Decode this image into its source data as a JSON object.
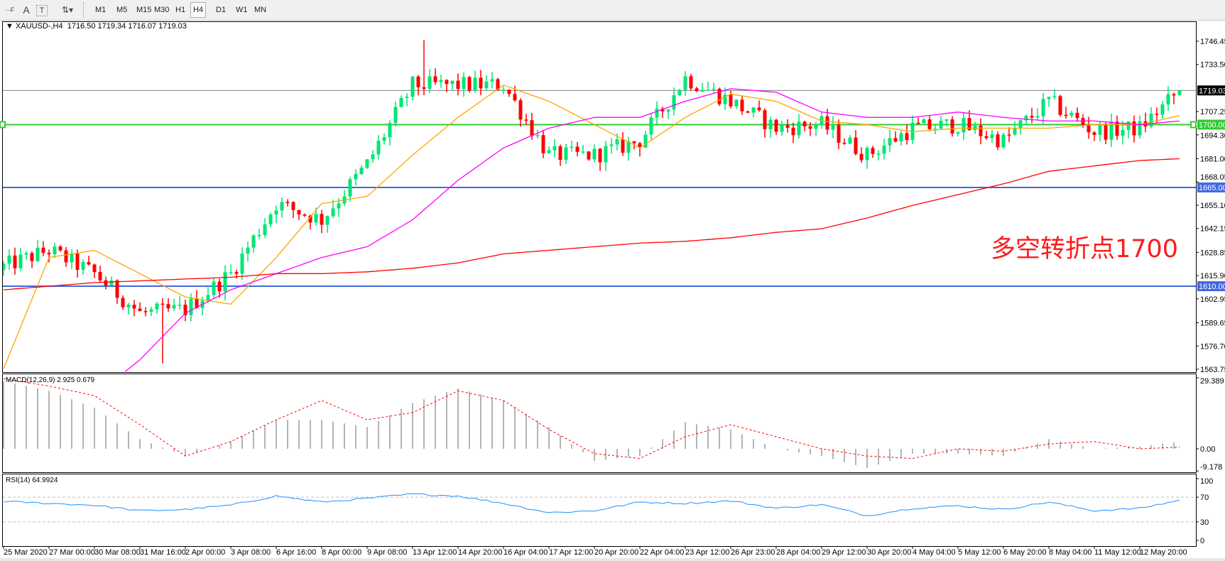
{
  "toolbar": {
    "icons": [
      "period-separators-icon",
      "text-label-icon",
      "text-icon",
      "arrows-icon"
    ],
    "timeframes": [
      "M1",
      "M5",
      "M15",
      "M30",
      "H1",
      "H4",
      "D1",
      "W1",
      "MN"
    ],
    "active_timeframe": "H4"
  },
  "header": {
    "symbol": "XAUUSD-,H4",
    "ohlc": "1716.50 1719.34 1716.07 1719.03"
  },
  "annotation": "多空转折点1700",
  "colors": {
    "bull": "#00e676",
    "bear": "#ff0000",
    "ma_fast": "#ffa500",
    "ma_mid": "#ff00ff",
    "ma_slow": "#ff0000",
    "support": "#4169e1",
    "pivot": "#32cd32",
    "last_price": "#808080",
    "rsi": "#1e90ff",
    "macd_hist": "#b4b4b4",
    "macd_signal": "#ff0000"
  },
  "chart_data": [
    {
      "type": "candlestick",
      "title": "XAUUSD-,H4",
      "ylim": [
        1563.75,
        1746.45
      ],
      "y_ticks": [
        "1746.45",
        "1733.50",
        "1707.25",
        "1694.30",
        "1681.00",
        "1668.05",
        "1655.10",
        "1642.15",
        "1628.85",
        "1615.90",
        "1602.95",
        "1589.65",
        "1576.70",
        "1563.75"
      ],
      "x_labels": [
        "25 Mar 2020",
        "27 Mar 00:00",
        "30 Mar 08:00",
        "31 Mar 16:00",
        "2 Apr 00:00",
        "3 Apr 08:00",
        "6 Apr 16:00",
        "8 Apr 00:00",
        "9 Apr 08:00",
        "13 Apr 12:00",
        "14 Apr 20:00",
        "16 Apr 04:00",
        "17 Apr 12:00",
        "20 Apr 20:00",
        "22 Apr 04:00",
        "23 Apr 12:00",
        "26 Apr 23:00",
        "28 Apr 04:00",
        "29 Apr 12:00",
        "30 Apr 20:00",
        "4 May 04:00",
        "5 May 12:00",
        "6 May 20:00",
        "8 May 04:00",
        "11 May 12:00",
        "12 May 20:00"
      ],
      "bars_per_label": 8,
      "bar_count": 208,
      "close_at_labels": [
        1621,
        1630,
        1617,
        1595,
        1597,
        1617,
        1656,
        1647,
        1678,
        1722,
        1722,
        1722,
        1683,
        1683,
        1691,
        1726,
        1713,
        1698,
        1700,
        1683,
        1698,
        1700,
        1691,
        1713,
        1696,
        1698
      ],
      "last_bar": {
        "open": 1716.5,
        "high": 1719.34,
        "low": 1716.07,
        "close": 1719.03
      },
      "period_high": 1747,
      "period_low": 1567,
      "horizontal_lines": [
        {
          "value": 1719.03,
          "label": "1719.03",
          "kind": "last_price"
        },
        {
          "value": 1700.0,
          "label": "1700.00",
          "kind": "pivot"
        },
        {
          "value": 1665.0,
          "label": "1665.00",
          "kind": "support"
        },
        {
          "value": 1610.0,
          "label": "1610.00",
          "kind": "support"
        }
      ],
      "moving_averages": [
        {
          "color": "ma_fast",
          "values_at_labels": [
            1564,
            1626,
            1630,
            1617,
            1604,
            1600,
            1626,
            1656,
            1660,
            1683,
            1704,
            1722,
            1713,
            1700,
            1687,
            1704,
            1717,
            1713,
            1702,
            1700,
            1696,
            1698,
            1698,
            1698,
            1700,
            1700
          ],
          "last": 1705
        },
        {
          "color": "ma_mid",
          "values_at_labels": [
            null,
            null,
            null,
            1569,
            1595,
            1608,
            1617,
            1626,
            1632,
            1647,
            1669,
            1687,
            1698,
            1704,
            1704,
            1713,
            1720,
            1718,
            1707,
            1704,
            1704,
            1707,
            1704,
            1702,
            1702,
            1700
          ],
          "last": 1702
        },
        {
          "color": "ma_slow",
          "values_at_labels": [
            1608,
            1610,
            1612,
            1613,
            1614,
            1615,
            1617,
            1617,
            1618,
            1620,
            1623,
            1628,
            1630,
            1632,
            1634,
            1635,
            1637,
            1640,
            1642,
            1648,
            1655,
            1661,
            1667,
            1674,
            1677,
            1680
          ],
          "last": 1681
        }
      ]
    },
    {
      "type": "bar+line",
      "title": "MACD(12,26,9) 2.925 0.679",
      "ylim": [
        -9.178,
        29.389
      ],
      "y_ticks": [
        "29.389",
        "0.00",
        "-9.178"
      ],
      "main_at_labels": [
        28,
        24,
        17,
        4,
        -3,
        3,
        12,
        12,
        9,
        19,
        25,
        20,
        9,
        -5,
        -3,
        11,
        8,
        0,
        -3,
        -8,
        -2,
        -2,
        -3,
        4,
        0,
        1
      ],
      "signal_at_labels": [
        29,
        26,
        22,
        10,
        -3,
        3,
        12,
        20,
        12,
        15,
        24,
        20,
        8,
        -2,
        -4,
        5,
        10,
        5,
        0,
        -3,
        -4,
        0,
        -1,
        2,
        3,
        0
      ],
      "last_main": 2.925,
      "last_signal": 0.679
    },
    {
      "type": "line",
      "title": "RSI(14) 64.9924",
      "ylim": [
        0,
        100
      ],
      "y_ticks": [
        "100",
        "70",
        "30",
        "0"
      ],
      "levels": [
        70,
        30
      ],
      "values_at_labels": [
        63,
        60,
        57,
        48,
        50,
        57,
        72,
        62,
        68,
        75,
        72,
        60,
        45,
        48,
        62,
        60,
        64,
        52,
        58,
        40,
        52,
        56,
        50,
        62,
        48,
        52
      ],
      "last": 64.9924
    }
  ]
}
